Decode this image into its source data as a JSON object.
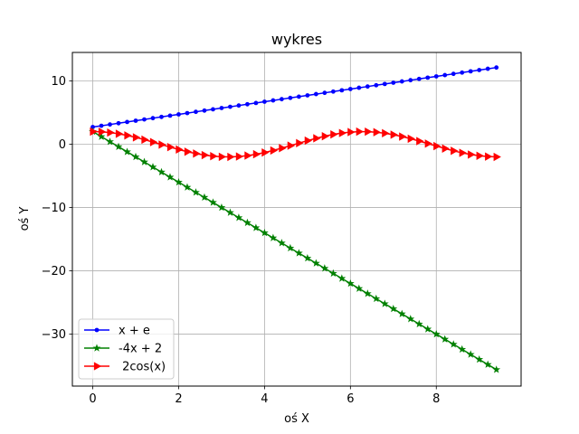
{
  "chart_data": {
    "type": "line",
    "title": "wykres",
    "xlabel": "oś X",
    "ylabel": "oś Y",
    "xlim": [
      -0.475,
      9.975
    ],
    "ylim": [
      -38.2,
      14.5
    ],
    "xticks": [
      0,
      2,
      4,
      6,
      8
    ],
    "xtick_labels": [
      "0",
      "2",
      "4",
      "6",
      "8"
    ],
    "yticks": [
      -30,
      -20,
      -10,
      0,
      10
    ],
    "ytick_labels": [
      "−30",
      "−20",
      "−10",
      "0",
      "10"
    ],
    "grid": true,
    "legend_position": "lower-left",
    "x_range": {
      "start": 0,
      "stop": 9.5,
      "step": 0.2
    },
    "series": [
      {
        "name": "x + e",
        "expression": "x + e",
        "color": "#0000ff",
        "marker": "dot"
      },
      {
        "name": "-4x + 2",
        "expression": "-4x + 2",
        "color": "#008000",
        "marker": "star"
      },
      {
        "name": " 2cos(x)",
        "expression": "2cos(x)",
        "color": "#ff0000",
        "marker": "triangle-right"
      }
    ]
  }
}
